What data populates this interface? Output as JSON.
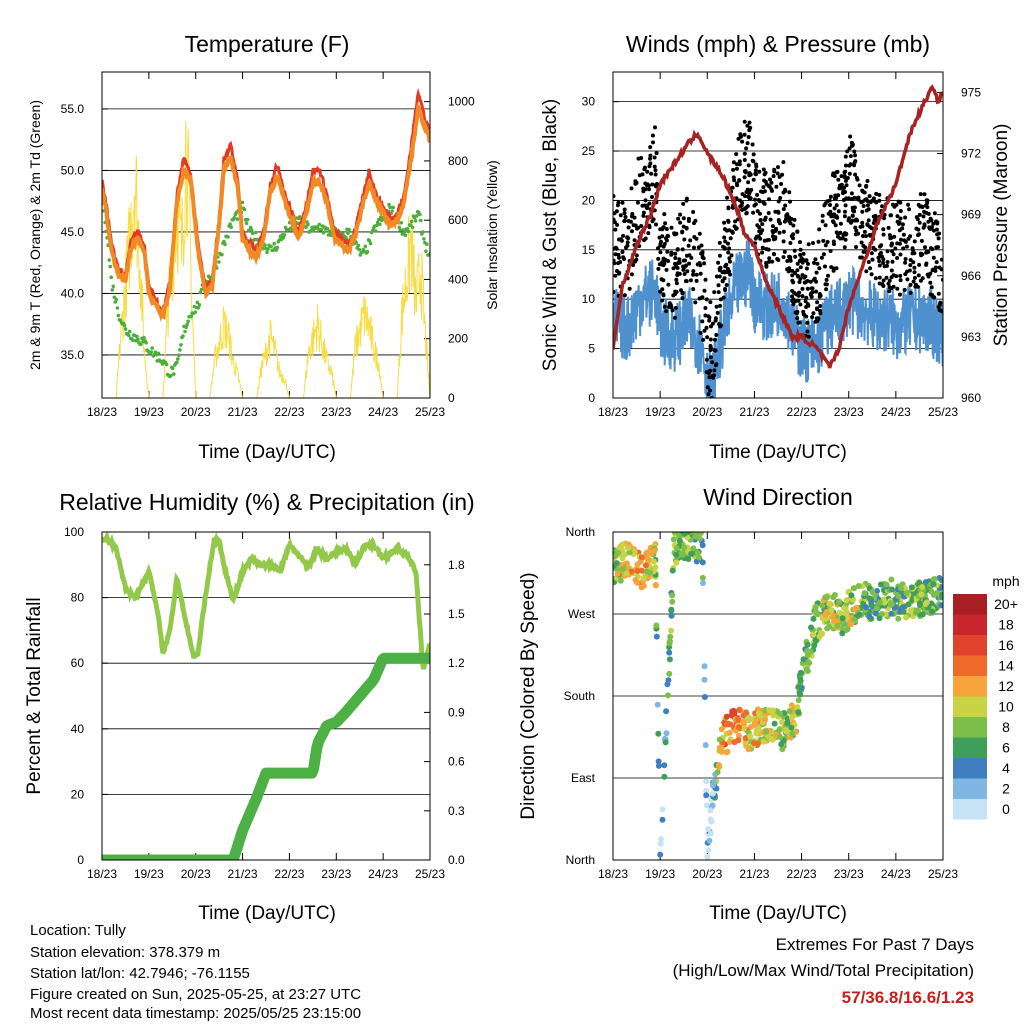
{
  "footer": {
    "location": "Location: Tully",
    "elevation": "Station elevation: 378.379 m",
    "latlon": "Station lat/lon: 42.7946; -76.1155",
    "created": "Figure created on Sun, 2025-05-25, at 23:27 UTC",
    "recent": "Most recent data timestamp: 2025/05/25 23:15:00"
  },
  "extremes": {
    "title": "Extremes For Past 7 Days",
    "subtitle": "(High/Low/Max Wind/Total Precipitation)",
    "values": "57/36.8/16.6/1.23"
  },
  "colors": {
    "temp_2m": "#e23a26",
    "temp_9m": "#f08a24",
    "dewpoint": "#4caf3c",
    "solar": "#f7dc45",
    "gust": "#000000",
    "wind": "#4f90cf",
    "pressure": "#a52323",
    "rh": "#93c94a",
    "precip": "#4db045"
  },
  "chart_data": [
    {
      "type": "line",
      "title": "Temperature (F)",
      "xlabel": "Time (Day/UTC)",
      "ylabel": "2m & 9m T (Red, Orange) & 2m Td (Green)",
      "ylabel_right": "Solar Insolation (Yellow)",
      "x_ticks": [
        "18/23",
        "19/23",
        "20/23",
        "21/23",
        "22/23",
        "23/23",
        "24/23",
        "25/23"
      ],
      "ylim": [
        31.5,
        58
      ],
      "y_ticks": [
        "35.0",
        "40.0",
        "45.0",
        "50.0",
        "55.0"
      ],
      "y_tick_values": [
        35,
        40,
        45,
        50,
        55
      ],
      "ylim_right": [
        0,
        1100
      ],
      "y_ticks_right": [
        "0",
        "200",
        "400",
        "600",
        "800",
        "1000"
      ],
      "grid": "horizontal",
      "series": [
        {
          "key": "temp_2m",
          "x": [
            0,
            0.1,
            0.2,
            0.35,
            0.5,
            0.6,
            0.75,
            0.9,
            1.0,
            1.15,
            1.3,
            1.45,
            1.6,
            1.75,
            1.9,
            2.05,
            2.2,
            2.35,
            2.5,
            2.6,
            2.75,
            2.9,
            3.0,
            3.15,
            3.3,
            3.45,
            3.6,
            3.75,
            3.9,
            4.05,
            4.2,
            4.35,
            4.5,
            4.65,
            4.8,
            4.95,
            5.1,
            5.25,
            5.4,
            5.55,
            5.7,
            5.85,
            6.0,
            6.15,
            6.3,
            6.45,
            6.6,
            6.75,
            6.9,
            7.0
          ],
          "y": [
            49,
            47,
            44,
            42,
            41.5,
            44,
            45,
            44,
            40.5,
            39.5,
            38.5,
            41,
            48,
            51,
            49.5,
            44,
            40.5,
            41,
            46,
            51,
            52,
            49,
            45,
            44,
            43.5,
            45,
            49,
            50.5,
            48,
            46.5,
            45,
            47,
            50,
            50,
            48,
            45,
            44.5,
            44,
            45,
            47.5,
            50,
            48,
            47,
            46,
            46.5,
            48,
            52,
            56.5,
            54,
            53
          ]
        },
        {
          "key": "temp_9m",
          "x": [
            0,
            0.1,
            0.2,
            0.35,
            0.5,
            0.6,
            0.75,
            0.9,
            1.0,
            1.15,
            1.3,
            1.45,
            1.6,
            1.75,
            1.9,
            2.05,
            2.2,
            2.35,
            2.5,
            2.6,
            2.75,
            2.9,
            3.0,
            3.15,
            3.3,
            3.45,
            3.6,
            3.75,
            3.9,
            4.05,
            4.2,
            4.35,
            4.5,
            4.65,
            4.8,
            4.95,
            5.1,
            5.25,
            5.4,
            5.55,
            5.7,
            5.85,
            6.0,
            6.15,
            6.3,
            6.45,
            6.6,
            6.75,
            6.9,
            7.0
          ],
          "y": [
            48.5,
            46.5,
            43.5,
            41.5,
            41,
            43.5,
            44.5,
            43.5,
            40,
            39,
            38,
            40.5,
            47.5,
            50,
            49,
            43.5,
            40,
            40.5,
            45.5,
            50,
            51,
            48.5,
            44.5,
            43.5,
            43,
            44.5,
            48.5,
            49.5,
            47.5,
            46,
            44.5,
            46.5,
            49,
            49,
            47.5,
            44.5,
            44,
            43.5,
            44.5,
            47,
            49,
            47.5,
            46.5,
            45.5,
            46,
            47.5,
            51,
            55,
            53.5,
            52.5
          ]
        },
        {
          "key": "dewpoint",
          "x": [
            0,
            0.1,
            0.2,
            0.35,
            0.5,
            0.7,
            0.9,
            1.0,
            1.15,
            1.3,
            1.45,
            1.6,
            1.75,
            1.9,
            2.05,
            2.2,
            2.35,
            2.5,
            2.65,
            2.8,
            3.0,
            3.15,
            3.3,
            3.45,
            3.6,
            3.75,
            3.9,
            4.05,
            4.2,
            4.35,
            4.5,
            4.65,
            4.8,
            4.95,
            5.1,
            5.25,
            5.4,
            5.55,
            5.7,
            5.85,
            6.0,
            6.15,
            6.3,
            6.45,
            6.6,
            6.75,
            6.9,
            7.0
          ],
          "y": [
            48.5,
            45,
            41,
            38.5,
            37,
            36.5,
            36,
            35.5,
            35,
            34.5,
            33.5,
            34,
            37,
            38.5,
            39,
            41,
            41.5,
            43,
            44.5,
            46,
            47,
            45,
            44.5,
            44,
            43.5,
            44,
            45,
            45.5,
            46,
            45.5,
            45,
            45.5,
            45,
            45,
            44.5,
            45,
            44,
            43,
            44,
            45.5,
            46,
            47,
            46,
            45,
            45.5,
            46.5,
            44,
            43
          ]
        },
        {
          "key": "solar",
          "axis": "right",
          "x": [
            0,
            0.3,
            0.4,
            0.6,
            0.7,
            0.8,
            0.9,
            1.0,
            1.3,
            1.4,
            1.6,
            1.7,
            1.8,
            1.9,
            2.0,
            2.3,
            2.4,
            2.6,
            2.7,
            2.8,
            2.9,
            3.0,
            3.3,
            3.4,
            3.6,
            3.7,
            3.8,
            3.9,
            4.0,
            4.3,
            4.4,
            4.6,
            4.7,
            4.8,
            4.9,
            5.0,
            5.3,
            5.4,
            5.6,
            5.7,
            5.8,
            5.9,
            6.0,
            6.3,
            6.4,
            6.6,
            6.7,
            6.8,
            6.9,
            7.0
          ],
          "y": [
            0,
            0,
            250,
            650,
            920,
            600,
            200,
            0,
            0,
            350,
            780,
            600,
            1060,
            500,
            0,
            0,
            150,
            300,
            250,
            150,
            90,
            0,
            0,
            120,
            250,
            180,
            100,
            80,
            0,
            0,
            180,
            300,
            220,
            150,
            100,
            0,
            0,
            200,
            340,
            290,
            200,
            150,
            0,
            0,
            340,
            640,
            380,
            530,
            260,
            0
          ]
        }
      ]
    },
    {
      "type": "line",
      "title": "Winds (mph) & Pressure (mb)",
      "xlabel": "Time (Day/UTC)",
      "ylabel": "Sonic Wind & Gust (Blue, Black)",
      "ylabel_right": "Station Pressure (Maroon)",
      "x_ticks": [
        "18/23",
        "19/23",
        "20/23",
        "21/23",
        "22/23",
        "23/23",
        "24/23",
        "25/23"
      ],
      "ylim": [
        0,
        33
      ],
      "y_ticks": [
        "0",
        "5",
        "10",
        "15",
        "20",
        "25",
        "30"
      ],
      "y_tick_values": [
        0,
        5,
        10,
        15,
        20,
        25,
        30
      ],
      "ylim_right": [
        960,
        976
      ],
      "y_ticks_right": [
        "960",
        "963",
        "966",
        "969",
        "972",
        "975"
      ],
      "grid": "horizontal",
      "series": [
        {
          "key": "gust",
          "kind": "scatter",
          "x": [
            0,
            0.3,
            0.6,
            0.9,
            1.0,
            1.3,
            1.6,
            1.9,
            2.0,
            2.1,
            2.3,
            2.6,
            2.9,
            3.0,
            3.3,
            3.6,
            3.9,
            4.0,
            4.3,
            4.6,
            4.9,
            5.0,
            5.3,
            5.6,
            5.9,
            6.0,
            6.3,
            6.6,
            6.9,
            7.0
          ],
          "y": [
            15,
            14,
            20,
            22,
            14,
            12,
            16,
            10,
            5,
            4,
            12,
            20,
            24,
            19,
            17,
            19,
            12,
            10,
            11,
            17,
            18,
            22,
            17,
            16,
            15,
            15,
            14,
            16,
            13,
            11
          ]
        },
        {
          "key": "wind",
          "x": [
            0,
            0.3,
            0.6,
            0.9,
            1.0,
            1.3,
            1.6,
            1.9,
            2.0,
            2.1,
            2.3,
            2.6,
            2.9,
            3.0,
            3.3,
            3.6,
            3.9,
            4.0,
            4.3,
            4.6,
            4.9,
            5.0,
            5.3,
            5.6,
            5.9,
            6.0,
            6.3,
            6.6,
            6.9,
            7.0
          ],
          "y": [
            8,
            7,
            10,
            11,
            7,
            6,
            8,
            5,
            2,
            1,
            6,
            11,
            13,
            10,
            9,
            10,
            6,
            5,
            5,
            8,
            9,
            10,
            9,
            8,
            8,
            7,
            8,
            8,
            7,
            6
          ]
        },
        {
          "key": "pressure",
          "axis": "right",
          "x": [
            0,
            0.2,
            0.5,
            0.8,
            1.0,
            1.3,
            1.6,
            1.8,
            2.0,
            2.3,
            2.6,
            2.8,
            3.0,
            3.2,
            3.5,
            3.8,
            4.0,
            4.3,
            4.6,
            4.8,
            5.0,
            5.3,
            5.6,
            6.0,
            6.3,
            6.6,
            6.8,
            6.9,
            7.0
          ],
          "y": [
            962.5,
            965.5,
            967.5,
            969,
            970.5,
            971.5,
            972.5,
            973,
            972,
            971,
            969.5,
            968,
            967.5,
            966,
            964.5,
            963,
            963,
            962.5,
            961.5,
            962.5,
            964.5,
            966.5,
            968.5,
            970.5,
            973,
            974.5,
            975.3,
            974.5,
            975
          ]
        }
      ]
    },
    {
      "type": "line",
      "title": "Relative Humidity (%) & Precipitation (in)",
      "xlabel": "Time (Day/UTC)",
      "ylabel": "Percent & Total Rainfall",
      "x_ticks": [
        "18/23",
        "19/23",
        "20/23",
        "21/23",
        "22/23",
        "23/23",
        "24/23",
        "25/23"
      ],
      "ylim": [
        0,
        100
      ],
      "y_ticks": [
        "0",
        "20",
        "40",
        "60",
        "80",
        "100"
      ],
      "y_tick_values": [
        0,
        20,
        40,
        60,
        80,
        100
      ],
      "ylim_right": [
        0,
        2
      ],
      "y_ticks_right": [
        "0.0",
        "0.3",
        "0.6",
        "0.9",
        "1.2",
        "1.5",
        "1.8"
      ],
      "grid": "horizontal",
      "series": [
        {
          "key": "rh",
          "x": [
            0,
            0.1,
            0.3,
            0.5,
            0.7,
            0.9,
            1.0,
            1.2,
            1.3,
            1.45,
            1.6,
            1.8,
            1.95,
            2.05,
            2.2,
            2.4,
            2.5,
            2.6,
            2.8,
            3.0,
            3.2,
            3.4,
            3.6,
            3.8,
            4.0,
            4.2,
            4.4,
            4.6,
            4.8,
            5.0,
            5.2,
            5.4,
            5.6,
            5.8,
            6.0,
            6.3,
            6.5,
            6.7,
            6.85,
            7.0
          ],
          "y": [
            97,
            98,
            95,
            83,
            80,
            85,
            88,
            75,
            63,
            70,
            86,
            72,
            62,
            63,
            80,
            98,
            97,
            90,
            79,
            88,
            92,
            90,
            90,
            88,
            96,
            93,
            89,
            95,
            92,
            94,
            95,
            90,
            96,
            96,
            92,
            95,
            93,
            88,
            58,
            66
          ]
        },
        {
          "key": "precip",
          "axis": "right",
          "x": [
            0,
            2.8,
            3.0,
            3.3,
            3.5,
            4.0,
            4.5,
            4.6,
            4.8,
            5.0,
            5.2,
            5.5,
            5.8,
            6.0,
            7.0
          ],
          "y": [
            0,
            0,
            0.18,
            0.38,
            0.53,
            0.53,
            0.53,
            0.71,
            0.82,
            0.84,
            0.9,
            1.0,
            1.1,
            1.23,
            1.23
          ]
        }
      ]
    },
    {
      "type": "scatter",
      "title": "Wind Direction",
      "xlabel": "Time (Day/UTC)",
      "ylabel": "Direction (Colored By Speed)",
      "x_ticks": [
        "18/23",
        "19/23",
        "20/23",
        "21/23",
        "22/23",
        "23/23",
        "24/23",
        "25/23"
      ],
      "y_ticks": [
        "North",
        "East",
        "South",
        "West",
        "North"
      ],
      "ylim": [
        0,
        360
      ],
      "colorbar": {
        "title": "mph",
        "labels": [
          "20+",
          "18",
          "16",
          "14",
          "12",
          "10",
          "8",
          "6",
          "4",
          "2",
          "0"
        ],
        "colors": [
          "#a51f23",
          "#c8262a",
          "#e0432c",
          "#f06a2b",
          "#f6a43b",
          "#c8d446",
          "#7dbf4a",
          "#3f9e5a",
          "#3f7fc0",
          "#7fb6e3",
          "#c6e3f6"
        ]
      },
      "series": [
        {
          "name": "",
          "x": [
            0,
            0.3,
            0.6,
            0.9,
            1.0,
            1.3,
            1.6,
            1.9,
            2.0,
            2.1,
            2.3,
            2.6,
            2.9,
            3.0,
            3.3,
            3.6,
            3.9,
            4.0,
            4.3,
            4.6,
            4.9,
            5.0,
            5.3,
            5.6,
            5.9,
            6.0,
            6.3,
            6.6,
            6.9,
            7.0
          ],
          "y": [
            320,
            330,
            315,
            330,
            0,
            345,
            350,
            340,
            5,
            60,
            130,
            150,
            140,
            145,
            150,
            140,
            160,
            200,
            260,
            275,
            265,
            275,
            285,
            280,
            290,
            285,
            280,
            290,
            290,
            300
          ],
          "speed": [
            8,
            10,
            12,
            9,
            2,
            8,
            8,
            6,
            2,
            2,
            12,
            14,
            10,
            12,
            10,
            8,
            10,
            6,
            8,
            10,
            8,
            10,
            8,
            6,
            8,
            6,
            8,
            8,
            6,
            4
          ]
        }
      ]
    }
  ]
}
